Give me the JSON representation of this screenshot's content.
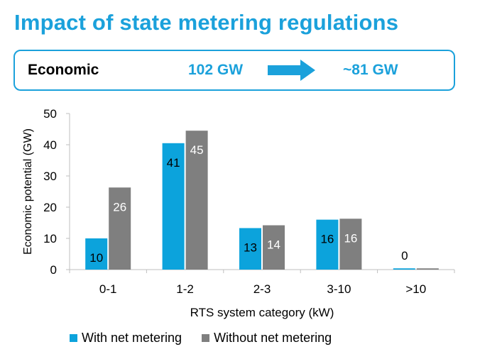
{
  "title": "Impact of state metering regulations",
  "summary": {
    "label": "Economic",
    "from_value": "102 GW",
    "to_value": "~81 GW",
    "arrow_color": "#1BA1DB"
  },
  "colors": {
    "accent": "#1BA1DB",
    "series_1": "#0CA3DC",
    "series_2": "#7F7F7F"
  },
  "chart_data": {
    "type": "bar",
    "xlabel": "RTS system category (kW)",
    "ylabel": "Economic potential (GW)",
    "ylim": [
      0,
      50
    ],
    "yticks": [
      0,
      10,
      20,
      30,
      40,
      50
    ],
    "categories": [
      "0-1",
      "1-2",
      "2-3",
      "3-10",
      ">10"
    ],
    "series": [
      {
        "name": "With net metering",
        "values": [
          10,
          40.5,
          13.3,
          16,
          0.4
        ],
        "labels": [
          "10",
          "41",
          "13",
          "16",
          ""
        ]
      },
      {
        "name": "Without net metering",
        "values": [
          26.3,
          44.5,
          14.2,
          16.3,
          0.4
        ],
        "labels": [
          "26",
          "45",
          "14",
          "16",
          ""
        ]
      }
    ],
    "annotations": [
      {
        "category": ">10",
        "text": "0"
      }
    ],
    "legend": "bottom",
    "grid": false
  }
}
